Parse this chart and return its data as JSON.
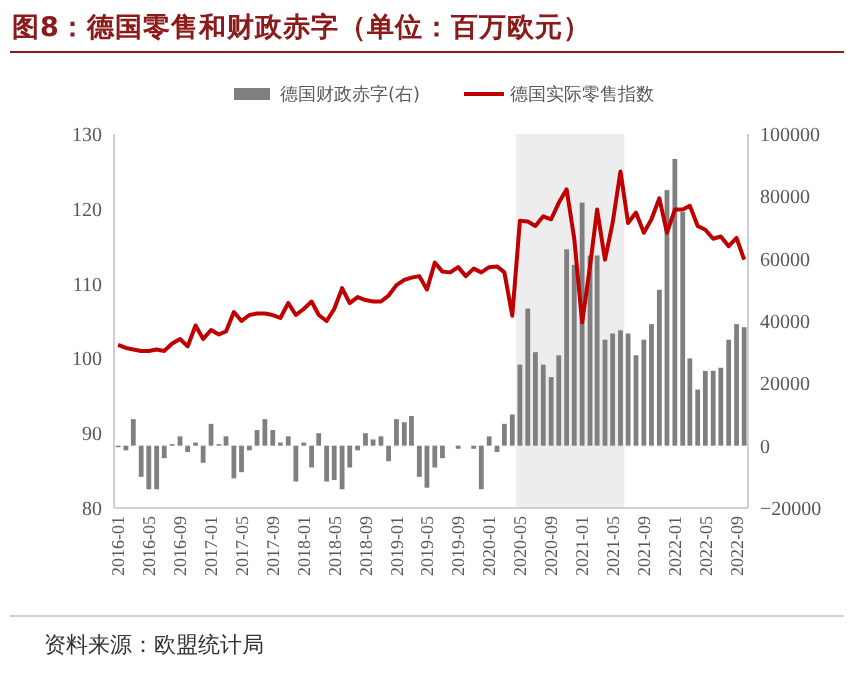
{
  "chart_data": {
    "type": "bar",
    "title": "图8：德国零售和财政赤字（单位：百万欧元）",
    "annotations": [
      "资料来源：欧盟统计局"
    ],
    "x": [
      "2016-01",
      "2016-02",
      "2016-03",
      "2016-04",
      "2016-05",
      "2016-06",
      "2016-07",
      "2016-08",
      "2016-09",
      "2016-10",
      "2016-11",
      "2016-12",
      "2017-01",
      "2017-02",
      "2017-03",
      "2017-04",
      "2017-05",
      "2017-06",
      "2017-07",
      "2017-08",
      "2017-09",
      "2017-10",
      "2017-11",
      "2017-12",
      "2018-01",
      "2018-02",
      "2018-03",
      "2018-04",
      "2018-05",
      "2018-06",
      "2018-07",
      "2018-08",
      "2018-09",
      "2018-10",
      "2018-11",
      "2018-12",
      "2019-01",
      "2019-02",
      "2019-03",
      "2019-04",
      "2019-05",
      "2019-06",
      "2019-07",
      "2019-08",
      "2019-09",
      "2019-10",
      "2019-11",
      "2019-12",
      "2020-01",
      "2020-02",
      "2020-03",
      "2020-04",
      "2020-05",
      "2020-06",
      "2020-07",
      "2020-08",
      "2020-09",
      "2020-10",
      "2020-11",
      "2020-12",
      "2021-01",
      "2021-02",
      "2021-03",
      "2021-04",
      "2021-05",
      "2021-06",
      "2021-07",
      "2021-08",
      "2021-09",
      "2021-10",
      "2021-11",
      "2021-12",
      "2022-01",
      "2022-02",
      "2022-03",
      "2022-04",
      "2022-05",
      "2022-06",
      "2022-07",
      "2022-08",
      "2022-09",
      "2022-10"
    ],
    "series": [
      {
        "name": "德国财政赤字(右)",
        "axis": "y2",
        "color": "#7f7f7f",
        "values": [
          -500,
          -1500,
          8500,
          -10000,
          -14000,
          -14000,
          -4000,
          500,
          3000,
          -2000,
          1000,
          -5500,
          7000,
          500,
          3000,
          -10500,
          -8500,
          -1500,
          5000,
          8500,
          5000,
          1000,
          3000,
          -11500,
          1000,
          -7000,
          4000,
          -11500,
          -11000,
          -14000,
          -7000,
          -1500,
          4000,
          2000,
          3000,
          -5000,
          8500,
          7500,
          9500,
          -10000,
          -13500,
          -7000,
          -4000,
          null,
          -1000,
          null,
          -1000,
          -14000,
          3000,
          -2000,
          7000,
          10000,
          26000,
          44000,
          30000,
          26000,
          22000,
          29000,
          63000,
          58000,
          78000,
          61000,
          61000,
          34000,
          36000,
          37000,
          36000,
          29000,
          34000,
          39000,
          50000,
          82000,
          92000,
          75000,
          28000,
          18000,
          24000,
          24000,
          25000,
          34000,
          39000,
          38000
        ]
      },
      {
        "name": "德国实际零售指数",
        "type": "line",
        "color": "#c00000",
        "values": [
          101.8,
          101.4,
          101.2,
          101.0,
          101.0,
          101.2,
          101.0,
          102.0,
          102.6,
          101.6,
          104.4,
          102.6,
          103.8,
          103.2,
          103.6,
          106.2,
          105.0,
          105.8,
          106.0,
          106.0,
          105.8,
          105.4,
          107.4,
          105.8,
          106.6,
          107.6,
          105.8,
          105.0,
          106.6,
          109.4,
          107.4,
          108.2,
          107.8,
          107.6,
          107.6,
          108.4,
          109.8,
          110.5,
          110.8,
          111.0,
          109.2,
          112.8,
          111.6,
          111.5,
          112.2,
          111.0,
          112.0,
          111.5,
          112.2,
          112.3,
          111.5,
          105.7,
          118.4,
          118.3,
          117.7,
          119.0,
          118.6,
          120.8,
          122.6,
          116.0,
          104.8,
          112.3,
          119.9,
          113.2,
          118.1,
          125.0,
          118.1,
          119.5,
          116.8,
          118.6,
          121.4,
          116.8,
          119.9,
          119.9,
          120.4,
          117.7,
          117.2,
          116.0,
          116.3,
          115.0,
          116.1,
          113.2
        ]
      }
    ],
    "xlim": [
      "2015-12-16",
      "2022-10-16"
    ],
    "xticks": [
      "2016-01",
      "2016-05",
      "2016-09",
      "2017-01",
      "2017-05",
      "2017-09",
      "2018-01",
      "2018-05",
      "2018-09",
      "2019-01",
      "2019-05",
      "2019-09",
      "2020-01",
      "2020-05",
      "2020-09",
      "2021-01",
      "2021-05",
      "2021-09",
      "2022-01",
      "2022-05",
      "2022-09"
    ],
    "ylim": [
      80,
      130
    ],
    "yticks": [
      80,
      90,
      100,
      110,
      120,
      130
    ],
    "y2lim": [
      -20000,
      100000
    ],
    "y2ticks": [
      -20000,
      0,
      20000,
      40000,
      60000,
      80000,
      100000
    ],
    "bands": [
      {
        "axis": "x",
        "from": "2020-04-16",
        "to": "2021-06-16",
        "color": "#ededed"
      }
    ],
    "grid": false,
    "legend": "top"
  }
}
